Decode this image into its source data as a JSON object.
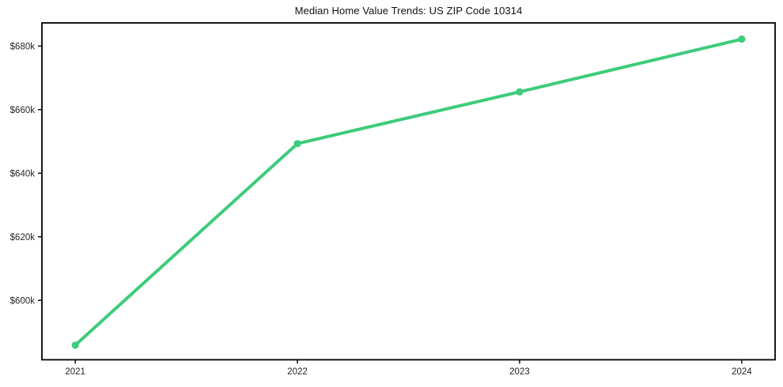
{
  "page": {
    "background": "#ffffff"
  },
  "chart_data": {
    "type": "line",
    "title": "Median Home Value Trends: US ZIP Code 10314",
    "x": [
      2021,
      2022,
      2023,
      2024
    ],
    "xtick_labels": [
      "2021",
      "2022",
      "2023",
      "2024"
    ],
    "series": [
      {
        "name": "Median Home Value",
        "values": [
          585900,
          649300,
          665600,
          682200
        ],
        "color": "#3dcc7a",
        "marker": "circle",
        "line_width": 4
      }
    ],
    "yticks": [
      600000,
      620000,
      640000,
      660000,
      680000
    ],
    "ytick_labels": [
      "$600k",
      "$620k",
      "$640k",
      "$660k",
      "$680k"
    ],
    "xlim": [
      2020.85,
      2024.15
    ],
    "ylim": [
      581300,
      687300
    ],
    "xlabel": "",
    "ylabel": "",
    "grid": false,
    "legend": "none",
    "axis_color": "#000000",
    "tick_label_color": "#262626"
  }
}
